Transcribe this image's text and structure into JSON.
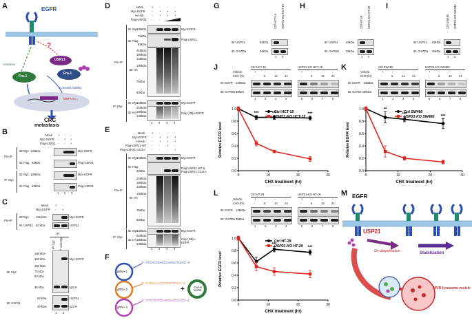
{
  "panel_labels": {
    "A": "A",
    "B": "B",
    "C": "C",
    "D": "D",
    "E": "E",
    "F": "F",
    "G": "G",
    "H": "H",
    "I": "I",
    "J": "J",
    "K": "K",
    "L": "L",
    "M": "M"
  },
  "A": {
    "egfr": "EGFR",
    "usp21": "USP21",
    "activation": "Activation",
    "fra1a": "Fra-1",
    "fra1b": "Fra-1",
    "increased_stability": "Increased stability",
    "mmps": "MMPs etc.,",
    "crc": "CRC",
    "metastasis": "metastasis",
    "question": "?"
  },
  "B": {
    "rows": [
      "Mock",
      "Myc-EGFR",
      "Flag-USP21"
    ],
    "signs": [
      [
        "+",
        "-",
        "-"
      ],
      [
        "-",
        "+",
        "+"
      ],
      [
        "-",
        "-",
        "+"
      ]
    ],
    "pre_ip": "Pre-IP",
    "ip_myc": "IP: Myc",
    "blots": [
      {
        "ib": "IB: Myc",
        "kda": "135kDa",
        "band": "Myc-EGFR"
      },
      {
        "ib": "IB: Flag",
        "kda": "63kDa",
        "band": "Flag-USP21"
      },
      {
        "ib": "IB: Myc",
        "kda": "135kDa",
        "band": "Myc-EGFR"
      },
      {
        "ib": "IB: Flag",
        "kda": "63kDa",
        "band": "Flag-USP21"
      }
    ],
    "lanes": [
      "1",
      "2",
      "3"
    ]
  },
  "C": {
    "rows": [
      "Mock",
      "Myc-EGFR"
    ],
    "signs": [
      [
        "+",
        "-"
      ],
      [
        "-",
        "+"
      ]
    ],
    "pre_ip": "Pre-IP",
    "ip": "IP:",
    "col_labels": [
      "IP: IgG",
      "IP: anti-Myc"
    ],
    "top": [
      {
        "ib": "IB: Myc",
        "kda": "135 kDa",
        "band": "Myc-EGFR"
      },
      {
        "ib": "IB: USP21",
        "kda": "63 kDa",
        "band": "USP21"
      }
    ],
    "ib_myc": "IB: Myc",
    "ib_usp21": "IB: USP21",
    "ladder": [
      "180 kDa-",
      "135 kDa-",
      "100 kDa-",
      "75 kDa-",
      "63 kDa-",
      "48 kDa-"
    ],
    "ladder2": "63 kDa-",
    "ladder3": "48 kDa-",
    "bands": [
      "Myc-EGFR",
      "IgG-H",
      "USP21",
      "IgG-H"
    ],
    "lanes": [
      "1",
      "2"
    ]
  },
  "D": {
    "rows": [
      "Mock",
      "Myc-EGFR",
      "HA-Ub",
      "Flag-USP21"
    ],
    "signs": [
      [
        "+",
        "-",
        "-",
        "-"
      ],
      [
        "-",
        "+",
        "+",
        "+"
      ],
      [
        "-",
        "+",
        "+",
        "+"
      ],
      [
        "-",
        "-",
        "",
        ""
      ]
    ],
    "pre_ip": "Pre-IP",
    "ip_myc": "IP: Myc",
    "ib_myc": "IB: Myc",
    "ib_flag": "IB: Flag",
    "ib_ha": "IB: HA",
    "ib_myc2": "IB: Myc",
    "ib_ha2": "IB: HA",
    "kda_myc": "135kDa",
    "kda_flag": "75kDa",
    "kda_flag2": "63kDa",
    "ladder": [
      "245kDa",
      "180kDa",
      "135kDa",
      "100kDa",
      "75kDa",
      "63kDa"
    ],
    "kda_myc2": "135kDa",
    "ladder2": [
      "245kDa",
      "180kDa",
      "135kDa"
    ],
    "bands": [
      "Myc-EGFR",
      "Flag-USP21",
      "Myc-EGFR",
      "Poly (Ub)n-EGFR"
    ],
    "lanes": [
      "1",
      "2",
      "3",
      "4"
    ]
  },
  "E": {
    "rows": [
      "Mock",
      "Myc-EGFR",
      "HA-Ub",
      "Flag-USP21 WT",
      "Flag-USP21 C221A"
    ],
    "signs": [
      [
        "+",
        "-",
        "-",
        "-"
      ],
      [
        "-",
        "+",
        "+",
        "+"
      ],
      [
        "-",
        "+",
        "+",
        "+"
      ],
      [
        "-",
        "-",
        "+",
        "-"
      ],
      [
        "-",
        "-",
        "-",
        "+"
      ]
    ],
    "pre_ip": "Pre-IP",
    "ip_myc": "IP: Myc",
    "ib_myc": "IB: Myc",
    "ib_flag": "IB: Flag",
    "ib_ha": "IB: HA",
    "ib_myc2": "IB: Myc",
    "ib_ha2": "IB: HA",
    "kda_myc": "135kDa",
    "kda_flag": "63kDa",
    "ladder": [
      "245kDa",
      "180kDa",
      "135kDa",
      "100kDa",
      "75kDa",
      "63kDa"
    ],
    "kda_myc2": "135kDa",
    "ladder2": [
      "245kDa",
      "180kDa",
      "135kDa"
    ],
    "bands": [
      "Myc-EGFR",
      "Flag-USP21 WT &",
      "Flag-USP21 C221A",
      "Myc-EGFR",
      "Poly (Ub)n-",
      "EGFR"
    ],
    "lanes": [
      "1",
      "2",
      "3",
      "4"
    ]
  },
  "F": {
    "grnas": [
      "gRNA-1",
      "gRNA-2",
      "gRNA-3"
    ],
    "seqs": [
      "5'- ATGACCGAGCCAAGCTACAG -3'",
      "5'- GTTCCACATTAGGTGGGT -3'",
      "5'- CTTCTCTGGATACAGCCAGG -3'"
    ],
    "plus": "+",
    "vector": "Cas-9 vector"
  },
  "G": {
    "cols": [
      "Ctrl HCT-15",
      "USP21-KO HCT-15"
    ],
    "ib": [
      "IB: USP21",
      "IB: GAPDH"
    ],
    "kda": [
      "63kDa",
      "35kDa"
    ],
    "lanes": [
      "1",
      "2"
    ]
  },
  "H": {
    "cols": [
      "Ctrl HT-29",
      "USP21-KO HT-29"
    ],
    "ib": [
      "IB: USP21",
      "IB: GAPDH"
    ],
    "kda": [
      "63kDa",
      "35kDa"
    ],
    "lanes": [
      "1",
      "2"
    ]
  },
  "I": {
    "cols": [
      "Ctrl SW480",
      "USP21-KO SW480"
    ],
    "ib": [
      "IB: USP21",
      "IB: GAPDH"
    ],
    "kda": [
      "63kDa",
      "35kDa"
    ],
    "lanes": [
      "1",
      "2"
    ]
  },
  "J": {
    "headers": [
      "Ctrl HCT-15",
      "USP21-KO HCT-15"
    ],
    "vehicle": "Vehicle",
    "chx": "CHX (hr)",
    "vsigns": [
      "+",
      "-",
      "-",
      "-",
      "+",
      "-",
      "-",
      "-"
    ],
    "chxv": [
      "-",
      "6",
      "12",
      "24",
      "-",
      "6",
      "12",
      "24"
    ],
    "ib": [
      "IB: EGFR",
      "IB: GAPDH"
    ],
    "kda": [
      "135kDa",
      "35kDa"
    ],
    "lanes": [
      "1",
      "2",
      "3",
      "4",
      "5",
      "6",
      "7",
      "8"
    ]
  },
  "K": {
    "headers": [
      "Ctrl SW480",
      "USP21-KO SW480"
    ],
    "vehicle": "Vehicle",
    "chx": "CHX (hr)",
    "vsigns": [
      "+",
      "-",
      "-",
      "-",
      "+",
      "-",
      "-",
      "-"
    ],
    "chxv": [
      "-",
      "6",
      "12",
      "24",
      "-",
      "6",
      "12",
      "24"
    ],
    "ib": [
      "IB: EGFR",
      "IB: GAPDH"
    ],
    "kda": [
      "135kDa",
      "35kDa"
    ],
    "lanes": [
      "1",
      "2",
      "3",
      "4",
      "5",
      "6",
      "7",
      "8"
    ]
  },
  "L": {
    "headers": [
      "Ctrl HT-29",
      "USP21-KO HT-29"
    ],
    "vehicle": "Vehicle",
    "chx": "CHX (hr)",
    "vsigns": [
      "+",
      "-",
      "-",
      "-",
      "+",
      "-",
      "-",
      "-"
    ],
    "chxv": [
      "-",
      "6",
      "12",
      "24",
      "-",
      "6",
      "12",
      "24"
    ],
    "ib": [
      "IB: EGFR",
      "IB: GAPDH"
    ],
    "kda": [
      "135kDa",
      "35kDa"
    ],
    "lanes": [
      "1",
      "2",
      "3",
      "4",
      "5",
      "6",
      "7",
      "8"
    ]
  },
  "M": {
    "egfr": "EGFR",
    "usp21": "USP21",
    "deubiq": "De-ubiquitination",
    "stab": "Stabilization",
    "mvb": "MVB-lysosome vesicle"
  },
  "colors": {
    "ctrl": "#000000",
    "ko": "#e0271f",
    "blue": "#2a4fb0",
    "purple": "#5b2c91",
    "green": "#4caf50",
    "red": "#d32f2f"
  },
  "chart_data": [
    {
      "type": "line",
      "panel": "J",
      "xlabel": "CHX treatment (hr)",
      "ylabel": "Relative EGFR level",
      "xlim": [
        0,
        30
      ],
      "ylim": [
        0.0,
        1.0
      ],
      "xticks": [
        0,
        10,
        20,
        30
      ],
      "yticks": [
        0.0,
        0.2,
        0.4,
        0.6,
        0.8,
        1.0
      ],
      "series": [
        {
          "name": "Ctrl HCT-15",
          "color": "#000000",
          "x": [
            0,
            6,
            12,
            24
          ],
          "y": [
            1.0,
            0.86,
            0.86,
            0.85
          ],
          "err": [
            0.03,
            0.03,
            0.03,
            0.03
          ]
        },
        {
          "name": "USP21-KO HCT-15",
          "color": "#e0271f",
          "x": [
            0,
            6,
            12,
            24
          ],
          "y": [
            1.0,
            0.44,
            0.31,
            0.19
          ],
          "err": [
            0.03,
            0.04,
            0.02,
            0.04
          ]
        }
      ],
      "annotations": [
        {
          "x": 6,
          "text": "***"
        },
        {
          "x": 12,
          "text": "***"
        },
        {
          "x": 24,
          "text": "***"
        }
      ]
    },
    {
      "type": "line",
      "panel": "K",
      "xlabel": "CHX treatment (hr)",
      "ylabel": "Relative EGFR level",
      "xlim": [
        0,
        30
      ],
      "ylim": [
        0.0,
        1.0
      ],
      "xticks": [
        0,
        10,
        20,
        30
      ],
      "yticks": [
        0.0,
        0.2,
        0.4,
        0.6,
        0.8,
        1.0
      ],
      "series": [
        {
          "name": "Ctrl SW480",
          "color": "#000000",
          "x": [
            0,
            6,
            12,
            24
          ],
          "y": [
            1.0,
            0.86,
            0.83,
            0.76
          ],
          "err": [
            0.03,
            0.09,
            0.04,
            0.08
          ]
        },
        {
          "name": "USP21-KO SW480",
          "color": "#e0271f",
          "x": [
            0,
            6,
            12,
            24
          ],
          "y": [
            1.0,
            0.31,
            0.2,
            0.14
          ],
          "err": [
            0.03,
            0.09,
            0.03,
            0.03
          ]
        }
      ],
      "annotations": [
        {
          "x": 6,
          "text": "**"
        },
        {
          "x": 12,
          "text": "***"
        },
        {
          "x": 24,
          "text": "***"
        }
      ]
    },
    {
      "type": "line",
      "panel": "L",
      "xlabel": "CHX treatment (hr)",
      "ylabel": "Relative EGFR level",
      "xlim": [
        0,
        30
      ],
      "ylim": [
        0.0,
        1.0
      ],
      "xticks": [
        0,
        10,
        20,
        30
      ],
      "yticks": [
        0.0,
        0.2,
        0.4,
        0.6,
        0.8,
        1.0
      ],
      "series": [
        {
          "name": "Ctrl HT-29",
          "color": "#000000",
          "x": [
            0,
            6,
            12,
            24
          ],
          "y": [
            1.0,
            0.62,
            0.82,
            0.77
          ],
          "err": [
            0.03,
            0.07,
            0.04,
            0.04
          ]
        },
        {
          "name": "USP21-KO HT-29",
          "color": "#e0271f",
          "x": [
            0,
            6,
            12,
            24
          ],
          "y": [
            1.0,
            0.54,
            0.46,
            0.42
          ],
          "err": [
            0.03,
            0.07,
            0.06,
            0.06
          ]
        }
      ],
      "annotations": [
        {
          "x": 12,
          "text": "***"
        },
        {
          "x": 24,
          "text": "***"
        }
      ]
    }
  ]
}
